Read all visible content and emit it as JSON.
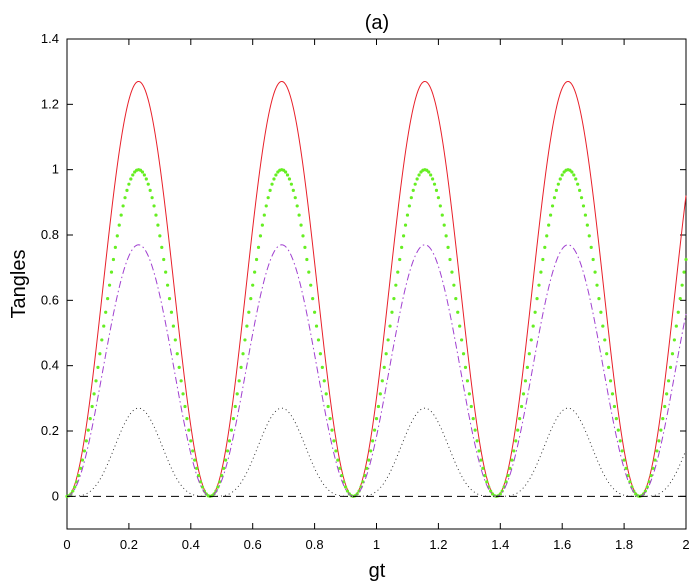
{
  "chart_data": {
    "type": "line",
    "title": "(a)",
    "xlabel": "gt",
    "ylabel": "Tangles",
    "xlim": [
      0,
      2
    ],
    "ylim": [
      -0.1,
      1.4
    ],
    "x_ticks": [
      "0",
      "0.2",
      "0.4",
      "0.6",
      "0.8",
      "1",
      "1.2",
      "1.4",
      "1.6",
      "1.8",
      "2"
    ],
    "y_ticks": [
      "0",
      "0.2",
      "0.4",
      "0.6",
      "0.8",
      "1",
      "1.2",
      "1.4"
    ],
    "grid": false,
    "legend": "none",
    "period": 0.4625,
    "series": [
      {
        "color": "#e8202a",
        "style": "solid",
        "peak": 1.27,
        "shape": "sin2"
      },
      {
        "color": "#66ee22",
        "style": "dotted-heavy",
        "peak": 1.0,
        "shape": "sin2"
      },
      {
        "color": "#a040d0",
        "style": "dash-dot",
        "peak": 0.77,
        "shape": "sin2"
      },
      {
        "color": "#222222",
        "style": "dotted-fine",
        "peak": 0.27,
        "shape": "sin4"
      },
      {
        "color": "#000000",
        "style": "dashed",
        "peak": 0.0,
        "shape": "const"
      }
    ]
  }
}
